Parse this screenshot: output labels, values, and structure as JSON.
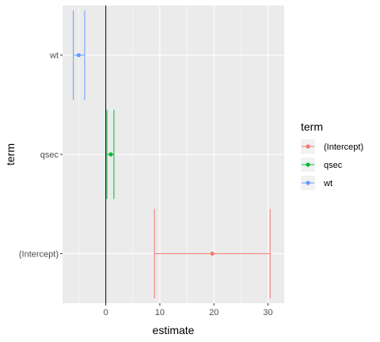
{
  "chart_data": {
    "type": "scatter",
    "subtype": "coefficient plot with horizontal error bars",
    "title": "",
    "xlabel": "estimate",
    "ylabel": "term",
    "xlim": [
      -8,
      33
    ],
    "x_ticks": [
      0,
      10,
      20,
      30
    ],
    "categories": [
      "(Intercept)",
      "qsec",
      "wt"
    ],
    "grid": true,
    "vline_x": 0,
    "legend": {
      "title": "term",
      "placement": "right",
      "entries": [
        "(Intercept)",
        "qsec",
        "wt"
      ]
    },
    "series": [
      {
        "name": "(Intercept)",
        "estimate": 19.7,
        "conf_low": 9.0,
        "conf_high": 30.4,
        "color": "#F8766D"
      },
      {
        "name": "qsec",
        "estimate": 0.93,
        "conf_low": 0.2,
        "conf_high": 1.5,
        "color": "#00BA38"
      },
      {
        "name": "wt",
        "estimate": -5.0,
        "conf_low": -6.0,
        "conf_high": -3.9,
        "color": "#619CFF"
      }
    ],
    "panel_background": "#EBEBEB",
    "grid_color": "#FFFFFF"
  }
}
